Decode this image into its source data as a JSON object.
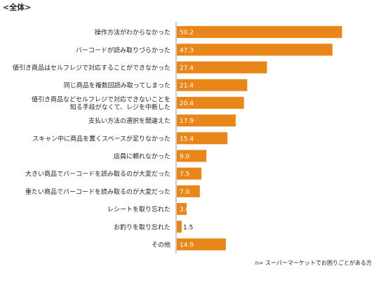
{
  "heading": "<全体>",
  "note": "n= スーパーマーケットでお困りごとがある方",
  "colors": {
    "bar": "#E8861A",
    "axis": "#999999"
  },
  "chart_data": {
    "type": "bar",
    "orientation": "horizontal",
    "title": "<全体>",
    "categories": [
      [
        "操作方法がわからなかった"
      ],
      [
        "バーコードが読み取りづらかった"
      ],
      [
        "値引き商品はセルフレジで対応することができなかった"
      ],
      [
        "同じ商品を複数回読み取ってしまった"
      ],
      [
        "値引き商品などセルフレジで対応できないことを",
        "知る手段がなくて、レジを中断した"
      ],
      [
        "支払い方法の選択を間違えた"
      ],
      [
        "スキャン中に商品を置くスペースが足りなかった"
      ],
      [
        "店員に頼れなかった"
      ],
      [
        "大きい商品でバーコードを読み取るのが大変だった"
      ],
      [
        "重たい商品でバーコードを読み取るのが大変だった"
      ],
      [
        "レシートを取り忘れた"
      ],
      [
        "お釣りを取り忘れた"
      ],
      [
        "その他"
      ]
    ],
    "values": [
      50.2,
      47.3,
      27.4,
      21.4,
      20.4,
      17.9,
      15.4,
      9.0,
      7.5,
      7.0,
      3.0,
      1.5,
      14.9
    ],
    "value_labels": [
      "50.2",
      "47.3",
      "27.4",
      "21.4",
      "20.4",
      "17.9",
      "15.4",
      "9.0",
      "7.5",
      "7.0",
      "3.0",
      "1.5",
      "14.9"
    ],
    "xlim": [
      0,
      52
    ],
    "grid": false,
    "legend": "none"
  }
}
